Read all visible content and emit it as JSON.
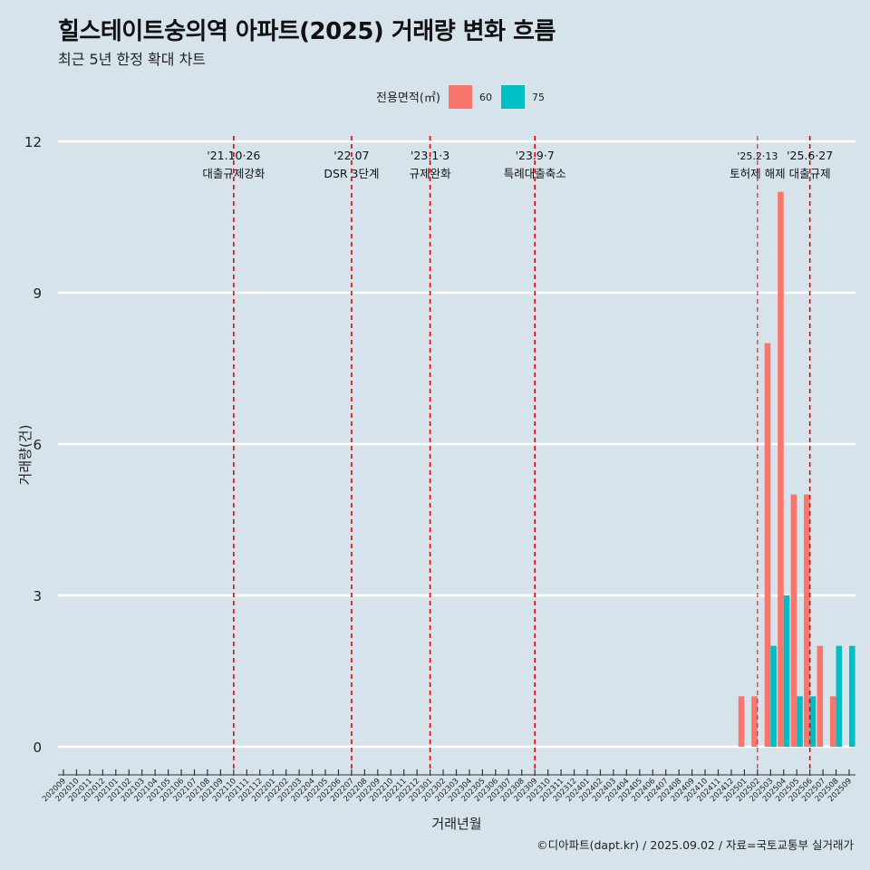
{
  "title": "힐스테이트숭의역 아파트(2025) 거래량 변화 흐름",
  "subtitle": "최근 5년 한정 확대 차트",
  "caption": "©디아파트(dapt.kr) / 2025.09.02 / 자료=국토교통부 실거래가",
  "chart_data": {
    "type": "bar",
    "xlabel": "거래년월",
    "ylabel": "거래량(건)",
    "ylim": [
      0,
      12
    ],
    "yticks": [
      0,
      3,
      6,
      9,
      12
    ],
    "grid": true,
    "legend": {
      "title": "전용면적(㎡)",
      "position": "top",
      "entries": [
        {
          "name": "60",
          "color": "#f8766d"
        },
        {
          "name": "75",
          "color": "#00bfc4"
        }
      ]
    },
    "categories": [
      "202009",
      "202010",
      "202011",
      "202012",
      "202101",
      "202102",
      "202103",
      "202104",
      "202105",
      "202106",
      "202107",
      "202108",
      "202109",
      "202110",
      "202111",
      "202112",
      "202201",
      "202202",
      "202203",
      "202204",
      "202205",
      "202206",
      "202207",
      "202208",
      "202209",
      "202210",
      "202211",
      "202212",
      "202301",
      "202302",
      "202303",
      "202304",
      "202305",
      "202306",
      "202307",
      "202308",
      "202309",
      "202310",
      "202311",
      "202312",
      "202401",
      "202402",
      "202403",
      "202404",
      "202405",
      "202406",
      "202407",
      "202408",
      "202409",
      "202410",
      "202411",
      "202412",
      "202501",
      "202502",
      "202503",
      "202504",
      "202505",
      "202506",
      "202507",
      "202508",
      "202509"
    ],
    "series": [
      {
        "name": "60",
        "color": "#f8766d",
        "values": [
          0,
          0,
          0,
          0,
          0,
          0,
          0,
          0,
          0,
          0,
          0,
          0,
          0,
          0,
          0,
          0,
          0,
          0,
          0,
          0,
          0,
          0,
          0,
          0,
          0,
          0,
          0,
          0,
          0,
          0,
          0,
          0,
          0,
          0,
          0,
          0,
          0,
          0,
          0,
          0,
          0,
          0,
          0,
          0,
          0,
          0,
          0,
          0,
          0,
          0,
          0,
          0,
          1,
          1,
          8,
          11,
          5,
          5,
          2,
          1,
          0
        ]
      },
      {
        "name": "75",
        "color": "#00bfc4",
        "values": [
          0,
          0,
          0,
          0,
          0,
          0,
          0,
          0,
          0,
          0,
          0,
          0,
          0,
          0,
          0,
          0,
          0,
          0,
          0,
          0,
          0,
          0,
          0,
          0,
          0,
          0,
          0,
          0,
          0,
          0,
          0,
          0,
          0,
          0,
          0,
          0,
          0,
          0,
          0,
          0,
          0,
          0,
          0,
          0,
          0,
          0,
          0,
          0,
          0,
          0,
          0,
          0,
          0,
          0,
          2,
          3,
          1,
          1,
          0,
          2,
          2
        ]
      }
    ],
    "annotations": [
      {
        "category": "202110",
        "date": "'21.10·26",
        "label": "대출규제강화",
        "style": "dashed"
      },
      {
        "category": "202207",
        "date": "'22.07",
        "label": "DSR 3단계",
        "style": "dashed"
      },
      {
        "category": "202301",
        "date": "'23.1·3",
        "label": "규제완화",
        "style": "dashed"
      },
      {
        "category": "202309",
        "date": "'23.9·7",
        "label": "특례대출축소",
        "style": "dashed"
      },
      {
        "category": "202502",
        "date": "'25.2·13",
        "label": "토허제 해제",
        "style": "thin-dashed"
      },
      {
        "category": "202506",
        "date": "'25.6·27",
        "label": "대출규제",
        "style": "dashed"
      }
    ]
  }
}
